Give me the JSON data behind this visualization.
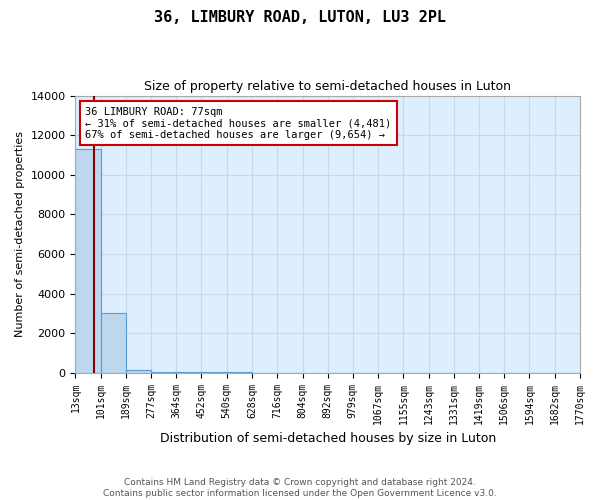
{
  "title": "36, LIMBURY ROAD, LUTON, LU3 2PL",
  "subtitle": "Size of property relative to semi-detached houses in Luton",
  "xlabel": "Distribution of semi-detached houses by size in Luton",
  "ylabel": "Number of semi-detached properties",
  "property_size": 77,
  "annotation_line1": "36 LIMBURY ROAD: 77sqm",
  "annotation_line2": "← 31% of semi-detached houses are smaller (4,481)",
  "annotation_line3": "67% of semi-detached houses are larger (9,654) →",
  "bin_edges": [
    13,
    101,
    189,
    277,
    364,
    452,
    540,
    628,
    716,
    804,
    892,
    979,
    1067,
    1155,
    1243,
    1331,
    1419,
    1506,
    1594,
    1682,
    1770
  ],
  "bar_heights": [
    11300,
    3000,
    130,
    60,
    40,
    25,
    18,
    12,
    8,
    6,
    5,
    4,
    3,
    3,
    2,
    2,
    1,
    1,
    1,
    1
  ],
  "bar_color": "#bdd7ee",
  "bar_edgecolor": "#5b9bd5",
  "vline_x": 77,
  "vline_color": "#8b0000",
  "ylim": [
    0,
    14000
  ],
  "yticks": [
    0,
    2000,
    4000,
    6000,
    8000,
    10000,
    12000,
    14000
  ],
  "grid_color": "#c8d8e8",
  "bg_color": "#ddeeff",
  "annotation_box_color": "#cc0000",
  "footer_line1": "Contains HM Land Registry data © Crown copyright and database right 2024.",
  "footer_line2": "Contains public sector information licensed under the Open Government Licence v3.0."
}
